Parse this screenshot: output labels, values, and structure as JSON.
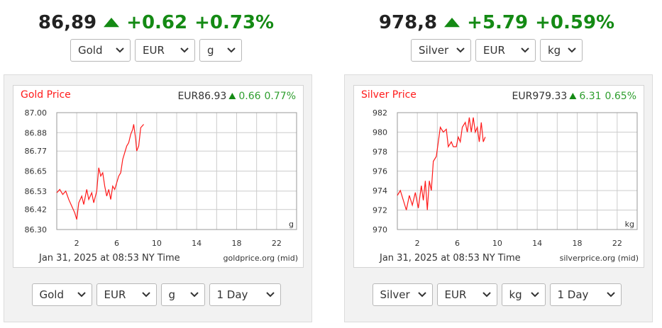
{
  "widgets": [
    {
      "price": "86,89",
      "change": "+0.62",
      "change_pct": "+0.73%",
      "selects": [
        "Gold",
        "EUR",
        "g"
      ],
      "bottom_selects": [
        "Gold",
        "EUR",
        "g",
        "1 Day"
      ]
    },
    {
      "price": "978,8",
      "change": "+5.79",
      "change_pct": "+0.59%",
      "selects": [
        "Silver",
        "EUR",
        "kg"
      ],
      "bottom_selects": [
        "Silver",
        "EUR",
        "kg",
        "1 Day"
      ]
    }
  ],
  "chart_data": [
    {
      "type": "line",
      "title": "Gold Price",
      "quote": "EUR86.93",
      "quote_change": "0.66",
      "quote_change_pct": "0.77%",
      "unit_label": "g",
      "footer_left": "Jan 31, 2025 at 08:53 NY Time",
      "footer_right": "goldprice.org (mid)",
      "x": [
        0,
        0.3,
        0.6,
        0.9,
        1.2,
        1.5,
        1.8,
        2.0,
        2.2,
        2.5,
        2.7,
        3.0,
        3.2,
        3.5,
        3.7,
        4.0,
        4.2,
        4.4,
        4.6,
        4.8,
        5.0,
        5.2,
        5.4,
        5.6,
        5.8,
        6.0,
        6.2,
        6.4,
        6.6,
        6.8,
        7.0,
        7.2,
        7.4,
        7.6,
        7.7,
        7.9,
        8.0,
        8.2,
        8.4,
        8.7
      ],
      "series": [
        {
          "color": "#ff1a1a",
          "values": [
            86.52,
            86.54,
            86.51,
            86.53,
            86.48,
            86.44,
            86.4,
            86.36,
            86.46,
            86.5,
            86.45,
            86.54,
            86.48,
            86.52,
            86.46,
            86.53,
            86.67,
            86.62,
            86.64,
            86.56,
            86.5,
            86.54,
            86.48,
            86.56,
            86.54,
            86.58,
            86.62,
            86.64,
            86.72,
            86.76,
            86.8,
            86.82,
            86.87,
            86.9,
            86.93,
            86.84,
            86.77,
            86.8,
            86.91,
            86.93
          ]
        }
      ],
      "xlim": [
        0,
        24
      ],
      "xticks": [
        2,
        6,
        10,
        14,
        18,
        22
      ],
      "xminor_ticks": [
        0,
        4,
        8,
        12,
        16,
        20,
        24
      ],
      "ylim": [
        86.3,
        87.0
      ],
      "yticks": [
        {
          "value": 86.3,
          "label": "86.30"
        },
        86.42,
        86.53,
        86.65,
        86.77,
        86.88,
        {
          "value": 87.0,
          "label": "87.00"
        }
      ],
      "grid": true
    },
    {
      "type": "line",
      "title": "Silver Price",
      "quote": "EUR979.33",
      "quote_change": "6.31",
      "quote_change_pct": "0.65%",
      "unit_label": "kg",
      "footer_left": "Jan 31, 2025 at 08:53 NY Time",
      "footer_right": "silverprice.org (mid)",
      "x": [
        0,
        0.3,
        0.6,
        0.9,
        1.2,
        1.5,
        1.8,
        2.1,
        2.4,
        2.6,
        2.8,
        3.0,
        3.2,
        3.4,
        3.6,
        3.9,
        4.1,
        4.3,
        4.6,
        4.9,
        5.1,
        5.4,
        5.6,
        5.9,
        6.1,
        6.3,
        6.5,
        6.8,
        7.0,
        7.2,
        7.4,
        7.6,
        7.8,
        8.0,
        8.2,
        8.4,
        8.6,
        8.8
      ],
      "series": [
        {
          "color": "#ff1a1a",
          "values": [
            973.5,
            974,
            973,
            972,
            973.5,
            972.5,
            973.8,
            972.2,
            974.5,
            973,
            975,
            972,
            975,
            974,
            977,
            977.5,
            979,
            980.5,
            980,
            980.3,
            978.5,
            979,
            978.5,
            978.5,
            979.5,
            979,
            980.5,
            981,
            980,
            981.5,
            980,
            981.5,
            980,
            980.5,
            979,
            981,
            979,
            979.5
          ]
        }
      ],
      "xlim": [
        0,
        24
      ],
      "xticks": [
        2,
        6,
        10,
        14,
        18,
        22
      ],
      "xminor_ticks": [
        0,
        4,
        8,
        12,
        16,
        20,
        24
      ],
      "ylim": [
        970,
        982
      ],
      "yticks": [
        970,
        972,
        974,
        976,
        978,
        980,
        982
      ],
      "grid": true
    }
  ]
}
